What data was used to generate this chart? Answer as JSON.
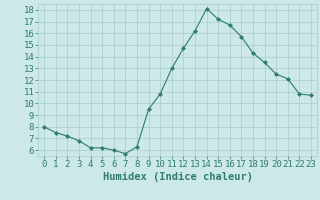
{
  "x": [
    0,
    1,
    2,
    3,
    4,
    5,
    6,
    7,
    8,
    9,
    10,
    11,
    12,
    13,
    14,
    15,
    16,
    17,
    18,
    19,
    20,
    21,
    22,
    23
  ],
  "y": [
    8.0,
    7.5,
    7.2,
    6.8,
    6.2,
    6.2,
    6.0,
    5.7,
    6.3,
    9.5,
    10.8,
    13.0,
    14.7,
    16.2,
    18.1,
    17.2,
    16.7,
    15.7,
    14.3,
    13.5,
    12.5,
    12.1,
    10.8,
    10.7
  ],
  "line_color": "#2e7d6e",
  "marker": "D",
  "marker_size": 2,
  "bg_color": "#cce8e8",
  "grid_color": "#aacccc",
  "xlabel": "Humidex (Indice chaleur)",
  "ylim": [
    5.5,
    18.5
  ],
  "xlim": [
    -0.5,
    23.5
  ],
  "yticks": [
    6,
    7,
    8,
    9,
    10,
    11,
    12,
    13,
    14,
    15,
    16,
    17,
    18
  ],
  "xticks": [
    0,
    1,
    2,
    3,
    4,
    5,
    6,
    7,
    8,
    9,
    10,
    11,
    12,
    13,
    14,
    15,
    16,
    17,
    18,
    19,
    20,
    21,
    22,
    23
  ],
  "xlabel_color": "#2e7d6e",
  "tick_color": "#2e7d6e",
  "label_fontsize": 7.5,
  "tick_fontsize": 6.5
}
